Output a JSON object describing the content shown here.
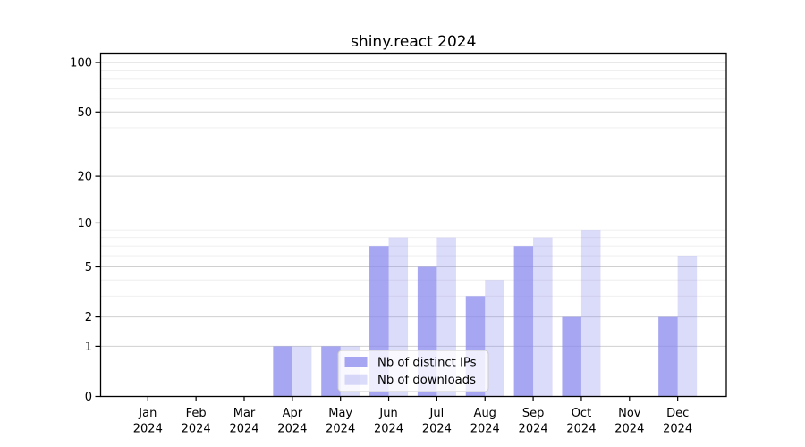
{
  "chart_data": {
    "type": "bar",
    "title": "shiny.react 2024",
    "x_year_label": "2024",
    "categories": [
      "Jan",
      "Feb",
      "Mar",
      "Apr",
      "May",
      "Jun",
      "Jul",
      "Aug",
      "Sep",
      "Oct",
      "Nov",
      "Dec"
    ],
    "series": [
      {
        "name": "Nb of distinct IPs",
        "base_color": "#8888ee",
        "opacity": 0.75,
        "values": [
          0,
          0,
          0,
          1,
          1,
          7,
          5,
          3,
          7,
          2,
          0,
          2
        ]
      },
      {
        "name": "Nb of downloads",
        "base_color": "#8888ee",
        "opacity": 0.3,
        "values": [
          0,
          0,
          0,
          1,
          1,
          8,
          8,
          4,
          8,
          9,
          0,
          6
        ]
      }
    ],
    "y_axis": {
      "scale": "log10(value+1)",
      "major_ticks": [
        0,
        1,
        2,
        5,
        10,
        20,
        50,
        100
      ],
      "minor_ticks": [
        3,
        4,
        6,
        7,
        8,
        9,
        30,
        40,
        60,
        70,
        80,
        90
      ],
      "ylim": [
        0,
        110
      ]
    },
    "legend": {
      "position": "lower center"
    },
    "grid": {
      "major_color": "#d0d0d0",
      "minor_color": "#ededed"
    },
    "style": {
      "axis_color": "#000000",
      "text_color": "#000000",
      "legend_border_color": "#cccccc",
      "legend_background": "rgba(255,255,255,0.8)"
    }
  }
}
